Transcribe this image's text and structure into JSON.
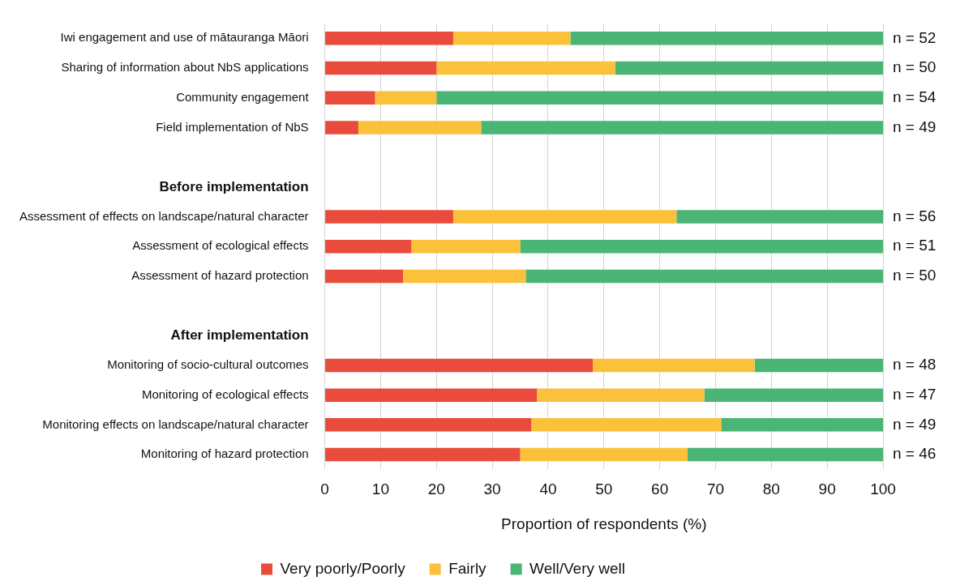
{
  "chart_data": {
    "type": "bar",
    "orientation": "horizontal",
    "stacked": true,
    "categories": [
      "Iwi engagement and use of mātauranga Māori",
      "Sharing of information about NbS applications",
      "Community engagement",
      "Field implementation of NbS",
      null,
      "Before implementation",
      "Assessment of effects on landscape/natural character",
      "Assessment of ecological effects",
      "Assessment of hazard protection",
      null,
      "After implementation",
      "Monitoring of socio-cultural outcomes",
      "Monitoring of ecological effects",
      "Monitoring effects on landscape/natural character",
      "Monitoring of hazard protection"
    ],
    "series": [
      {
        "name": "Very poorly/Poorly",
        "color": "#e94b3c",
        "values": [
          23,
          20,
          9,
          6,
          null,
          null,
          23,
          15.5,
          14,
          null,
          null,
          48,
          38,
          37,
          35
        ]
      },
      {
        "name": "Fairly",
        "color": "#fbc13a",
        "values": [
          21,
          32,
          11,
          22,
          null,
          null,
          40,
          19.5,
          22,
          null,
          null,
          29,
          30,
          34,
          30
        ]
      },
      {
        "name": "Well/Very well",
        "color": "#4ab574",
        "values": [
          56,
          48,
          80,
          72,
          null,
          null,
          37,
          65,
          64,
          null,
          null,
          23,
          32,
          29,
          35
        ]
      }
    ],
    "xlabel": "Proportion of respondents (%)",
    "xlim": [
      0,
      100
    ],
    "xticks": [
      0,
      10,
      20,
      30,
      40,
      50,
      60,
      70,
      80,
      90,
      100
    ],
    "grid": "x",
    "legend": "bottom",
    "annotations": [
      "n = 52",
      "n = 50",
      "n = 54",
      "n = 49",
      "n = 56",
      "n = 51",
      "n = 50",
      "n = 48",
      "n = 47",
      "n = 49",
      "n = 46"
    ]
  }
}
